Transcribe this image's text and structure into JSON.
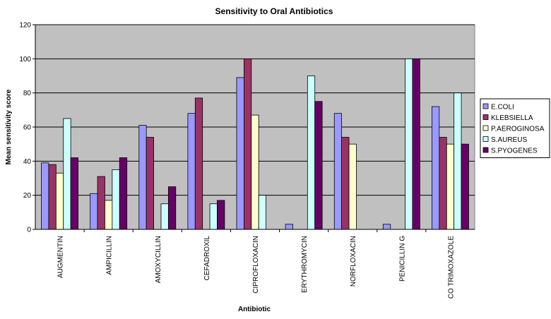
{
  "chart_data": {
    "type": "bar",
    "title": "Sensitivity to Oral Antibiotics",
    "xlabel": "Antibiotic",
    "ylabel": "Mean sensitivity score",
    "ylim": [
      0,
      120
    ],
    "yticks": [
      0,
      20,
      40,
      60,
      80,
      100,
      120
    ],
    "grid": true,
    "legend_position": "right",
    "plot_background": "#c0c0c0",
    "categories": [
      "AUGMENTIN",
      "AMPICILLIN",
      "AMOXYCILLIN",
      "CEFADROXIL",
      "CIPROFLOXACIN",
      "ERYTHROMYCIN",
      "NORFLOXACIN",
      "PENICILLIN G",
      "CO TRIMOXAZOLE"
    ],
    "series": [
      {
        "name": "E.COLI",
        "color": "#9999ff",
        "values": [
          39,
          21,
          61,
          68,
          89,
          3,
          68,
          3,
          72
        ]
      },
      {
        "name": "KLEBSIELLA",
        "color": "#993366",
        "values": [
          38,
          31,
          54,
          77,
          100,
          0,
          54,
          0,
          54
        ]
      },
      {
        "name": "P.AEROGINOSA",
        "color": "#ffffcc",
        "values": [
          33,
          17,
          0,
          0,
          67,
          0,
          50,
          0,
          50
        ]
      },
      {
        "name": "S.AUREUS",
        "color": "#ccffff",
        "values": [
          65,
          35,
          15,
          15,
          20,
          90,
          0,
          100,
          80
        ]
      },
      {
        "name": "S.PYOGENES",
        "color": "#660066",
        "values": [
          42,
          42,
          25,
          17,
          0,
          75,
          0,
          100,
          50
        ]
      }
    ]
  }
}
